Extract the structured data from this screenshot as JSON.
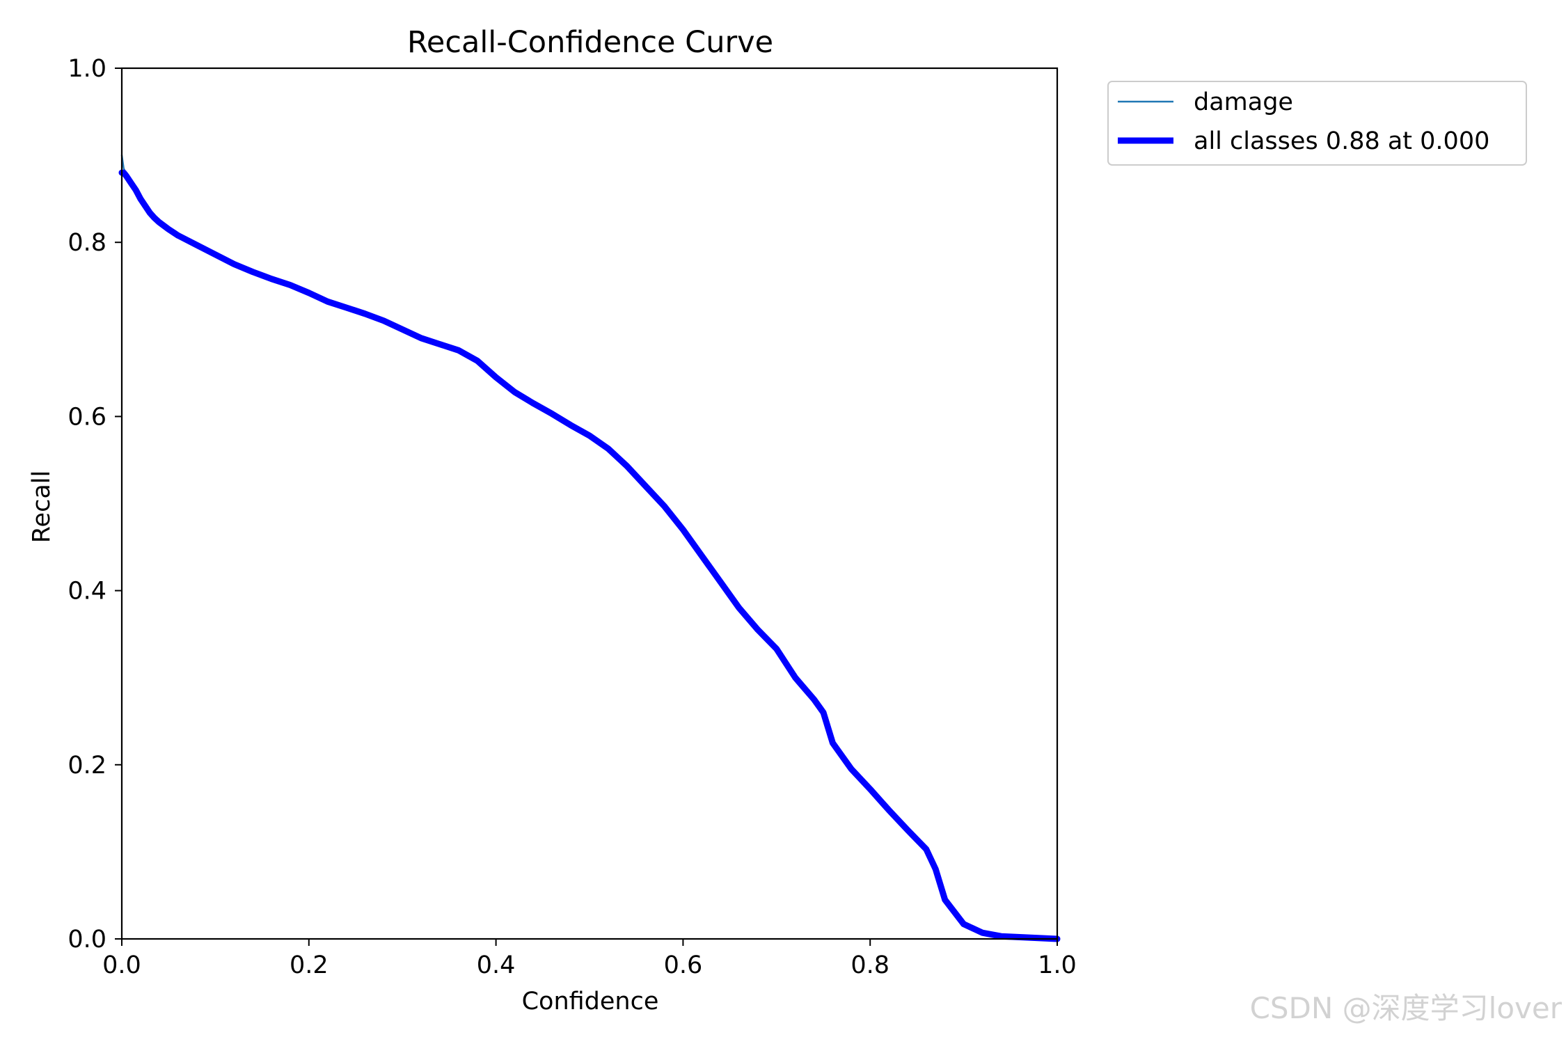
{
  "watermark": "CSDN @深度学习lover",
  "colors": {
    "damage": "#1f77b4",
    "all_classes": "#0000ff",
    "axes": "#000000",
    "legend_border": "#cccccc"
  },
  "chart_data": {
    "type": "line",
    "title": "Recall-Confidence Curve",
    "xlabel": "Confidence",
    "ylabel": "Recall",
    "xlim": [
      0,
      1
    ],
    "ylim": [
      0,
      1
    ],
    "xticks": [
      "0.0",
      "0.2",
      "0.4",
      "0.6",
      "0.8",
      "1.0"
    ],
    "yticks": [
      "0.0",
      "0.2",
      "0.4",
      "0.6",
      "0.8",
      "1.0"
    ],
    "grid": false,
    "legend_position": "outside top-right",
    "series": [
      {
        "name": "damage",
        "color": "#1f77b4",
        "x": [
          0,
          0.002,
          0.005,
          0.01,
          0.015,
          0.02,
          0.025,
          0.03,
          0.035,
          0.04,
          0.05,
          0.06,
          0.08,
          0.1,
          0.12,
          0.14,
          0.16,
          0.18,
          0.2,
          0.22,
          0.24,
          0.26,
          0.28,
          0.3,
          0.32,
          0.34,
          0.36,
          0.38,
          0.4,
          0.42,
          0.44,
          0.46,
          0.48,
          0.5,
          0.52,
          0.54,
          0.56,
          0.58,
          0.6,
          0.62,
          0.64,
          0.66,
          0.68,
          0.7,
          0.72,
          0.74,
          0.75,
          0.76,
          0.78,
          0.8,
          0.82,
          0.84,
          0.86,
          0.87,
          0.88,
          0.9,
          0.92,
          0.94,
          0.96,
          0.98,
          1.0
        ],
        "y": [
          0.9,
          0.885,
          0.878,
          0.87,
          0.86,
          0.85,
          0.842,
          0.834,
          0.828,
          0.823,
          0.815,
          0.808,
          0.797,
          0.786,
          0.775,
          0.766,
          0.758,
          0.751,
          0.742,
          0.732,
          0.725,
          0.718,
          0.71,
          0.7,
          0.69,
          0.683,
          0.676,
          0.664,
          0.645,
          0.628,
          0.615,
          0.603,
          0.59,
          0.578,
          0.563,
          0.543,
          0.52,
          0.497,
          0.47,
          0.44,
          0.41,
          0.38,
          0.355,
          0.333,
          0.3,
          0.275,
          0.26,
          0.225,
          0.195,
          0.172,
          0.148,
          0.125,
          0.103,
          0.08,
          0.045,
          0.017,
          0.007,
          0.003,
          0.002,
          0.001,
          0.0
        ]
      },
      {
        "name": "all classes 0.88 at 0.000",
        "color": "#0000ff",
        "x": [
          0,
          0.002,
          0.005,
          0.01,
          0.015,
          0.02,
          0.025,
          0.03,
          0.035,
          0.04,
          0.05,
          0.06,
          0.08,
          0.1,
          0.12,
          0.14,
          0.16,
          0.18,
          0.2,
          0.22,
          0.24,
          0.26,
          0.28,
          0.3,
          0.32,
          0.34,
          0.36,
          0.38,
          0.4,
          0.42,
          0.44,
          0.46,
          0.48,
          0.5,
          0.52,
          0.54,
          0.56,
          0.58,
          0.6,
          0.62,
          0.64,
          0.66,
          0.68,
          0.7,
          0.72,
          0.74,
          0.75,
          0.76,
          0.78,
          0.8,
          0.82,
          0.84,
          0.86,
          0.87,
          0.88,
          0.9,
          0.92,
          0.94,
          0.96,
          0.98,
          1.0
        ],
        "y": [
          0.88,
          0.88,
          0.876,
          0.868,
          0.86,
          0.85,
          0.842,
          0.834,
          0.828,
          0.823,
          0.815,
          0.808,
          0.797,
          0.786,
          0.775,
          0.766,
          0.758,
          0.751,
          0.742,
          0.732,
          0.725,
          0.718,
          0.71,
          0.7,
          0.69,
          0.683,
          0.676,
          0.664,
          0.645,
          0.628,
          0.615,
          0.603,
          0.59,
          0.578,
          0.563,
          0.543,
          0.52,
          0.497,
          0.47,
          0.44,
          0.41,
          0.38,
          0.355,
          0.333,
          0.3,
          0.275,
          0.26,
          0.225,
          0.195,
          0.172,
          0.148,
          0.125,
          0.103,
          0.08,
          0.045,
          0.017,
          0.007,
          0.003,
          0.002,
          0.001,
          0.0
        ]
      }
    ]
  }
}
